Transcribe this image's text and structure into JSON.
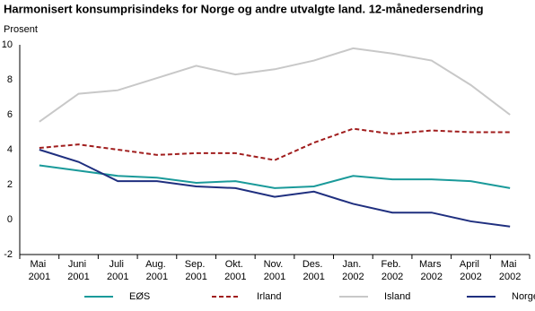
{
  "chart_data": {
    "type": "line",
    "title": "Harmonisert konsumprisindeks for Norge og andre utvalgte land. 12-månedersendring",
    "y_label": "Prosent",
    "categories": [
      "Mai 2001",
      "Juni 2001",
      "Juli 2001",
      "Aug. 2001",
      "Sep. 2001",
      "Okt. 2001",
      "Nov. 2001",
      "Des. 2001",
      "Jan. 2002",
      "Feb. 2002",
      "Mars 2002",
      "April 2002",
      "Mai 2002"
    ],
    "series": [
      {
        "name": "EØS",
        "color": "#1a9a9a",
        "values": [
          3.1,
          2.8,
          2.5,
          2.4,
          2.1,
          2.2,
          1.8,
          1.9,
          2.5,
          2.3,
          2.3,
          2.2,
          1.8
        ]
      },
      {
        "name": "Irland",
        "color": "#a01d1d",
        "dash": true,
        "values": [
          4.1,
          4.3,
          4.0,
          3.7,
          3.8,
          3.8,
          3.4,
          4.4,
          5.2,
          4.9,
          5.1,
          5.0,
          5.0
        ]
      },
      {
        "name": "Island",
        "color": "#c8c8c8",
        "values": [
          5.6,
          7.2,
          7.4,
          8.1,
          8.8,
          8.3,
          8.6,
          9.1,
          9.8,
          9.5,
          9.1,
          7.7,
          6.0
        ]
      },
      {
        "name": "Norge",
        "color": "#1f2f7f",
        "values": [
          4.0,
          3.3,
          2.2,
          2.2,
          1.9,
          1.8,
          1.3,
          1.6,
          0.9,
          0.4,
          0.4,
          -0.1,
          -0.4
        ]
      }
    ],
    "ylim": [
      -2,
      10
    ],
    "yticks": [
      -2,
      0,
      2,
      4,
      6,
      8,
      10
    ],
    "grid": false,
    "legend": "bottom"
  }
}
